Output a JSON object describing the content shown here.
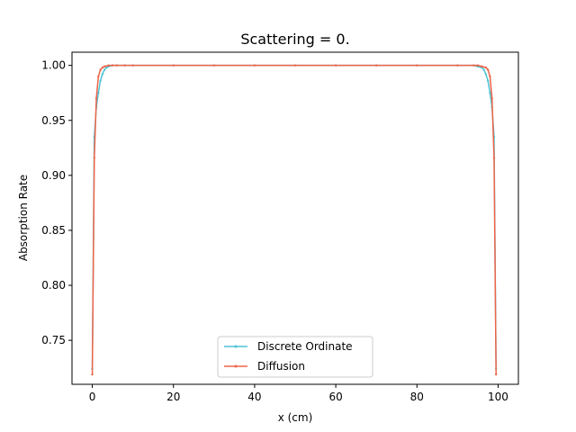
{
  "chart_data": {
    "type": "line",
    "title": "Scattering = 0.",
    "xlabel": "x (cm)",
    "ylabel": "Absorption Rate",
    "xlim": [
      -5,
      105
    ],
    "ylim": [
      0.71,
      1.012
    ],
    "xticks": [
      0,
      20,
      40,
      60,
      80,
      100
    ],
    "yticks": [
      0.75,
      0.8,
      0.85,
      0.9,
      0.95,
      1.0
    ],
    "ytick_labels": [
      "0.75",
      "0.80",
      "0.85",
      "0.90",
      "0.95",
      "1.00"
    ],
    "grid": false,
    "legend_position": "lower center",
    "series": [
      {
        "name": "Discrete Ordinate",
        "color": "#4fc3d3",
        "marker": ".",
        "x": [
          0,
          0.5,
          1.0,
          1.5,
          2.0,
          2.5,
          3.0,
          3.5,
          4.0,
          5.0,
          6.0,
          8.0,
          10,
          20,
          30,
          40,
          50,
          60,
          70,
          80,
          90,
          94.0,
          95.0,
          96.0,
          96.5,
          97.0,
          97.5,
          98.0,
          98.5,
          99.0,
          99.5
        ],
        "y": [
          0.724,
          0.935,
          0.962,
          0.975,
          0.986,
          0.992,
          0.996,
          0.998,
          0.999,
          1.0,
          1.0,
          1.0,
          1.0,
          1.0,
          1.0,
          1.0,
          1.0,
          1.0,
          1.0,
          1.0,
          1.0,
          1.0,
          0.999,
          0.998,
          0.996,
          0.992,
          0.986,
          0.975,
          0.962,
          0.935,
          0.724
        ]
      },
      {
        "name": "Diffusion",
        "color": "#ee6449",
        "marker": ".",
        "x": [
          0,
          0.5,
          1.0,
          1.5,
          2.0,
          2.5,
          3.0,
          4.0,
          5.0,
          6.0,
          8.0,
          10,
          20,
          30,
          40,
          50,
          60,
          70,
          80,
          90,
          94.0,
          95.0,
          96.0,
          97.0,
          97.5,
          98.0,
          98.5,
          99.0,
          99.5
        ],
        "y": [
          0.719,
          0.916,
          0.97,
          0.99,
          0.996,
          0.998,
          0.999,
          1.0,
          1.0,
          1.0,
          1.0,
          1.0,
          1.0,
          1.0,
          1.0,
          1.0,
          1.0,
          1.0,
          1.0,
          1.0,
          1.0,
          1.0,
          0.999,
          0.998,
          0.996,
          0.99,
          0.97,
          0.916,
          0.719
        ]
      }
    ]
  }
}
